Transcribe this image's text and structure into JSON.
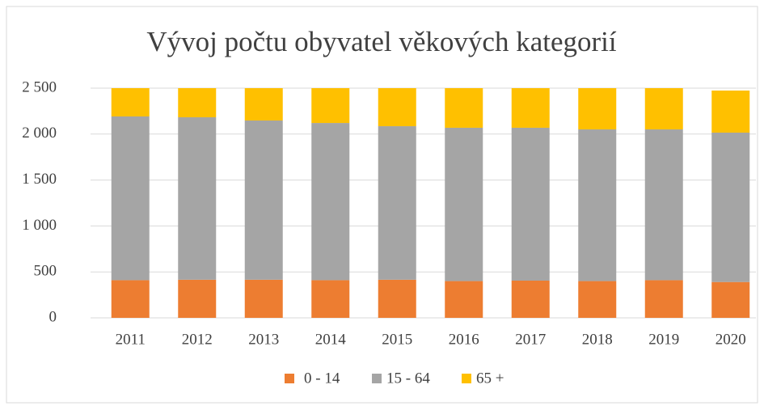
{
  "chart_data": {
    "type": "stacked_bar",
    "title": "Vývoj počtu obyvatel věkových kategorií",
    "categories": [
      "2011",
      "2012",
      "2013",
      "2014",
      "2015",
      "2016",
      "2017",
      "2018",
      "2019",
      "2020"
    ],
    "series": [
      {
        "name": "0 - 14",
        "color": "#ed7d31",
        "values": [
          410,
          415,
          415,
          410,
          415,
          400,
          405,
          400,
          410,
          390
        ]
      },
      {
        "name": "15 - 64",
        "color": "#a5a5a5",
        "values": [
          1782,
          1768,
          1733,
          1711,
          1671,
          1669,
          1664,
          1651,
          1641,
          1626
        ]
      },
      {
        "name": "65 +",
        "color": "#ffc000",
        "values": [
          308,
          317,
          352,
          379,
          414,
          431,
          431,
          449,
          449,
          458
        ]
      }
    ],
    "ylim": [
      0,
      2500
    ],
    "yticks": [
      0,
      500,
      {
        "value": 1000,
        "label": "1 000"
      },
      {
        "value": 1500,
        "label": "1 500"
      },
      {
        "value": 2000,
        "label": "2 000"
      },
      {
        "value": 2500,
        "label": "2 500"
      }
    ],
    "grid": true,
    "legend": "bottom"
  }
}
